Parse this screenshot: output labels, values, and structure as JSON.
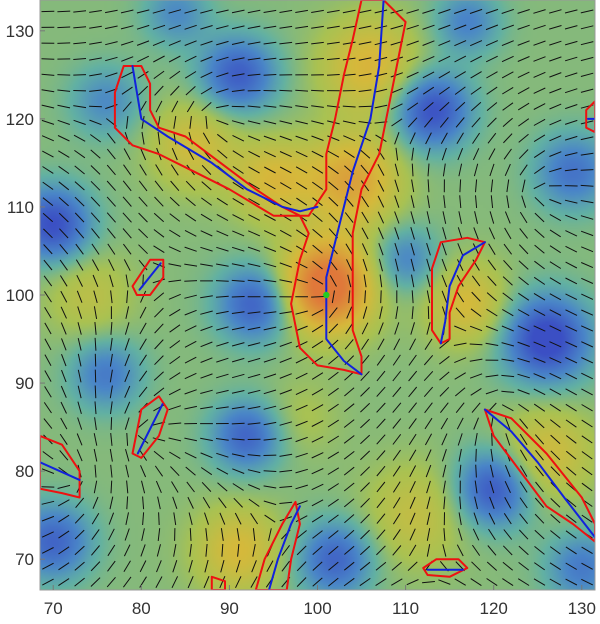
{
  "chart_data": {
    "type": "heatmap",
    "title": "",
    "xlabel": "",
    "ylabel": "",
    "xlim": [
      68.5,
      131.5
    ],
    "ylim": [
      66.5,
      133.5
    ],
    "x_ticks": [
      70,
      80,
      90,
      100,
      110,
      120,
      130
    ],
    "y_ticks": [
      70,
      80,
      90,
      100,
      110,
      120,
      130
    ],
    "colormap": [
      "#3b4fc4",
      "#4a86c8",
      "#62b1a3",
      "#a9c252",
      "#d6b93b",
      "#e0783a"
    ],
    "heat_blobs": [
      {
        "x": 101,
        "y": 101,
        "amp": 2.3,
        "s": 3.6
      },
      {
        "x": 104,
        "y": 113,
        "amp": 1.3,
        "s": 3.6
      },
      {
        "x": 106,
        "y": 126,
        "amp": 1.0,
        "s": 3.8
      },
      {
        "x": 95,
        "y": 113,
        "amp": 0.9,
        "s": 3.2
      },
      {
        "x": 86,
        "y": 117,
        "amp": 0.8,
        "s": 3.4
      },
      {
        "x": 117,
        "y": 99,
        "amp": 0.9,
        "s": 3.2
      },
      {
        "x": 126,
        "y": 82,
        "amp": 0.8,
        "s": 3.6
      },
      {
        "x": 91,
        "y": 71,
        "amp": 0.9,
        "s": 3.4
      },
      {
        "x": 111,
        "y": 75,
        "amp": 0.6,
        "s": 4.0
      },
      {
        "x": 74,
        "y": 100,
        "amp": 0.5,
        "s": 3.4
      },
      {
        "x": 93,
        "y": 99,
        "amp": -1.3,
        "s": 3.0
      },
      {
        "x": 126,
        "y": 95,
        "amp": -1.7,
        "s": 3.4
      },
      {
        "x": 113,
        "y": 121,
        "amp": -1.5,
        "s": 3.0
      },
      {
        "x": 91,
        "y": 125,
        "amp": -1.3,
        "s": 3.0
      },
      {
        "x": 120,
        "y": 78,
        "amp": -1.4,
        "s": 3.0
      },
      {
        "x": 70,
        "y": 108,
        "amp": -1.5,
        "s": 3.0
      },
      {
        "x": 70,
        "y": 72,
        "amp": -1.2,
        "s": 3.0
      },
      {
        "x": 102,
        "y": 70,
        "amp": -1.2,
        "s": 3.0
      },
      {
        "x": 92,
        "y": 84,
        "amp": -1.2,
        "s": 2.8
      },
      {
        "x": 110,
        "y": 104,
        "amp": -0.8,
        "s": 2.6
      },
      {
        "x": 129,
        "y": 114,
        "amp": -1.0,
        "s": 3.0
      },
      {
        "x": 76,
        "y": 91,
        "amp": -0.9,
        "s": 2.8
      },
      {
        "x": 76,
        "y": 122,
        "amp": -0.7,
        "s": 2.8
      },
      {
        "x": 117,
        "y": 131,
        "amp": -0.8,
        "s": 2.6
      },
      {
        "x": 84,
        "y": 132,
        "amp": -0.7,
        "s": 2.6
      },
      {
        "x": 130,
        "y": 69,
        "amp": -0.9,
        "s": 2.8
      },
      {
        "x": 98,
        "y": 86,
        "amp": 0.3,
        "s": 3.0
      }
    ],
    "director_field": {
      "spacing": 1.8,
      "segment_length": 1.45,
      "vortices": [
        {
          "x": 101,
          "y": 100,
          "q": 0.5
        },
        {
          "x": 81,
          "y": 102,
          "q": -0.5
        },
        {
          "x": 80,
          "y": 84,
          "q": 0.5
        },
        {
          "x": 115,
          "y": 96,
          "q": -0.5
        },
        {
          "x": 121,
          "y": 87,
          "q": 0.5
        },
        {
          "x": 95,
          "y": 74,
          "q": -0.5
        },
        {
          "x": 72,
          "y": 79,
          "q": 0.5
        },
        {
          "x": 113,
          "y": 69,
          "q": -0.5
        },
        {
          "x": 88,
          "y": 120,
          "q": 0.5
        },
        {
          "x": 108,
          "y": 118,
          "q": -0.5
        },
        {
          "x": 125,
          "y": 112,
          "q": 0.5
        },
        {
          "x": 77,
          "y": 120,
          "q": -0.5
        }
      ]
    },
    "contours": {
      "red_boundaries": [
        {
          "name": "central-arm",
          "points": [
            [
              107.5,
              133.5
            ],
            [
              110,
              131
            ],
            [
              109,
              126
            ],
            [
              108,
              121
            ],
            [
              107,
              116
            ],
            [
              105,
              112
            ],
            [
              104,
              107
            ],
            [
              104,
              101
            ],
            [
              104,
              96
            ],
            [
              105,
              93
            ],
            [
              105,
              91
            ],
            [
              103,
              91.5
            ],
            [
              100,
              92
            ],
            [
              98,
              94
            ],
            [
              97,
              99
            ],
            [
              98,
              104
            ],
            [
              99,
              107
            ],
            [
              98,
              109
            ],
            [
              96,
              110
            ],
            [
              93,
              112
            ],
            [
              89,
              115
            ],
            [
              85,
              118
            ],
            [
              82,
              119
            ],
            [
              81,
              121
            ],
            [
              81,
              124
            ],
            [
              80,
              126
            ],
            [
              78,
              126
            ],
            [
              77,
              123
            ],
            [
              77,
              119
            ],
            [
              79,
              117
            ],
            [
              82,
              116
            ],
            [
              86,
              114
            ],
            [
              90,
              112
            ],
            [
              95,
              109
            ],
            [
              99,
              109
            ],
            [
              101,
              112
            ],
            [
              101,
              116
            ],
            [
              102,
              120
            ],
            [
              103,
              125
            ],
            [
              104,
              129
            ],
            [
              105,
              133.5
            ]
          ]
        },
        {
          "name": "blob-right-upper",
          "points": [
            [
              114,
              106
            ],
            [
              117,
              106.5
            ],
            [
              119,
              106
            ],
            [
              118,
              104
            ],
            [
              116,
              101
            ],
            [
              115,
              98
            ],
            [
              115,
              95
            ],
            [
              114,
              94.5
            ],
            [
              113,
              96
            ],
            [
              113,
              100
            ],
            [
              113,
              103
            ]
          ]
        },
        {
          "name": "blob-left-small-upper",
          "points": [
            [
              79,
              101
            ],
            [
              81,
              104
            ],
            [
              82.5,
              104
            ],
            [
              82.5,
              102
            ],
            [
              81,
              100
            ],
            [
              79.5,
              100
            ]
          ]
        },
        {
          "name": "blob-left-small-lower",
          "points": [
            [
              79,
              82
            ],
            [
              80,
              87
            ],
            [
              82,
              88.5
            ],
            [
              83,
              87
            ],
            [
              82,
              84
            ],
            [
              80,
              81.5
            ]
          ]
        },
        {
          "name": "blob-right-lower",
          "points": [
            [
              119,
              87
            ],
            [
              122,
              86
            ],
            [
              126,
              82
            ],
            [
              130,
              77
            ],
            [
              131.5,
              74
            ],
            [
              131.5,
              72
            ],
            [
              129,
              74
            ],
            [
              126,
              76
            ],
            [
              123,
              80
            ],
            [
              120,
              84
            ]
          ]
        },
        {
          "name": "blob-left-edge",
          "points": [
            [
              68.5,
              84
            ],
            [
              71,
              83
            ],
            [
              73,
              80
            ],
            [
              73,
              77
            ],
            [
              71,
              77.5
            ],
            [
              68.5,
              78
            ]
          ]
        },
        {
          "name": "blob-bottom-center",
          "points": [
            [
              93,
              66.5
            ],
            [
              94,
              70
            ],
            [
              96,
              74
            ],
            [
              97.5,
              76.5
            ],
            [
              98,
              74
            ],
            [
              97,
              70
            ],
            [
              96.5,
              66.5
            ]
          ]
        },
        {
          "name": "blob-bottom-small",
          "points": [
            [
              88,
              68
            ],
            [
              89.5,
              67.5
            ],
            [
              89.5,
              66.5
            ],
            [
              88,
              66.5
            ]
          ]
        },
        {
          "name": "blob-bottom-right",
          "points": [
            [
              112,
              69
            ],
            [
              113.5,
              70
            ],
            [
              116,
              70
            ],
            [
              117,
              69
            ],
            [
              115,
              68
            ],
            [
              112.5,
              68.2
            ]
          ]
        },
        {
          "name": "blob-right-edge-top",
          "points": [
            [
              131.5,
              122
            ],
            [
              130.5,
              121
            ],
            [
              130.5,
              119
            ],
            [
              131.5,
              118.5
            ]
          ]
        }
      ],
      "blue_lines": [
        {
          "name": "central-arm-line",
          "points": [
            [
              107.5,
              133.5
            ],
            [
              107,
              126
            ],
            [
              106,
              120
            ],
            [
              104,
              114
            ],
            [
              103,
              110
            ],
            [
              102,
              106
            ],
            [
              101,
              102
            ],
            [
              101,
              98
            ],
            [
              101,
              95
            ],
            [
              103,
              92.5
            ],
            [
              105,
              91
            ]
          ]
        },
        {
          "name": "left-arm-line",
          "points": [
            [
              79,
              126
            ],
            [
              79.5,
              123
            ],
            [
              80,
              120
            ],
            [
              83,
              118
            ],
            [
              88,
              115
            ],
            [
              92,
              112
            ],
            [
              96,
              110
            ],
            [
              98,
              109.5
            ],
            [
              100,
              110
            ]
          ]
        },
        {
          "name": "blob-right-upper-line",
          "points": [
            [
              119,
              106
            ],
            [
              116.5,
              104.5
            ],
            [
              115,
              101
            ],
            [
              114.5,
              97
            ],
            [
              114,
              94.5
            ]
          ]
        },
        {
          "name": "blob-left-small-upper-line",
          "points": [
            [
              79.8,
              100.6
            ],
            [
              82.2,
              103.6
            ]
          ]
        },
        {
          "name": "blob-left-small-lower-line",
          "points": [
            [
              79.6,
              82
            ],
            [
              82.4,
              87.6
            ]
          ]
        },
        {
          "name": "blob-right-lower-line",
          "points": [
            [
              119,
              87
            ],
            [
              122,
              84.5
            ],
            [
              125,
              81
            ],
            [
              128,
              77
            ],
            [
              131.5,
              72.5
            ]
          ]
        },
        {
          "name": "blob-left-edge-line",
          "points": [
            [
              68.5,
              81
            ],
            [
              73,
              79
            ]
          ]
        },
        {
          "name": "blob-bottom-center-line",
          "points": [
            [
              94.5,
              66.5
            ],
            [
              95.5,
              70
            ],
            [
              97,
              74
            ],
            [
              98,
              76
            ]
          ]
        },
        {
          "name": "blob-bottom-right-line",
          "points": [
            [
              112.5,
              68.8
            ],
            [
              116.5,
              68.8
            ]
          ]
        },
        {
          "name": "blob-right-edge-top-line",
          "points": [
            [
              131.5,
              120
            ],
            [
              130.7,
              120
            ]
          ]
        }
      ]
    },
    "marker": {
      "x": 101,
      "y": 100,
      "color": "#22cc22"
    }
  }
}
